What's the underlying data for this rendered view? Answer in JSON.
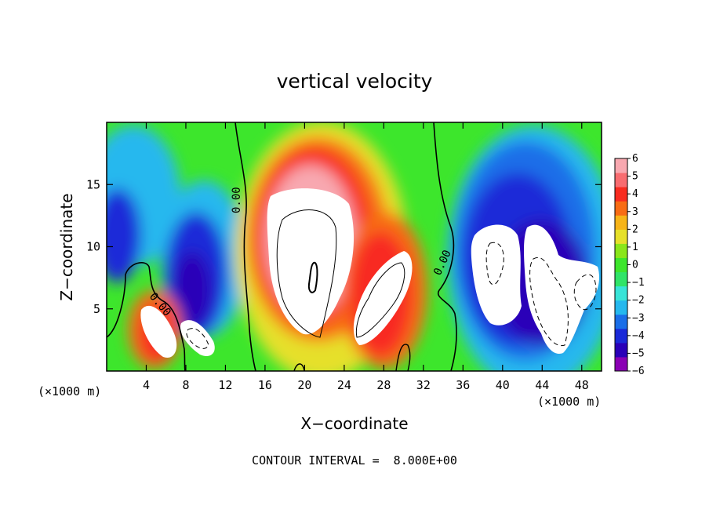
{
  "chart_data": {
    "type": "heatmap",
    "title": "vertical velocity",
    "xlabel": "X−coordinate",
    "ylabel": "Z−coordinate",
    "x_unit_label": "(×1000 m)",
    "x_ticks": [
      4,
      8,
      12,
      16,
      20,
      24,
      28,
      32,
      36,
      40,
      44,
      48
    ],
    "y_ticks": [
      5,
      10,
      15
    ],
    "xlim": [
      0,
      50
    ],
    "ylim": [
      0,
      20
    ],
    "colorbar": {
      "min": -6,
      "max": 6,
      "ticks": [
        6,
        5,
        4,
        3,
        2,
        1,
        0,
        -1,
        -2,
        -3,
        -4,
        -5,
        -6
      ],
      "tick_labels": [
        "6",
        "5",
        "4",
        "3",
        "2",
        "1",
        "0",
        "−1",
        "−2",
        "−3",
        "−4",
        "−5",
        "−6"
      ],
      "colors": [
        "#8a00b4",
        "#2a00b8",
        "#1a2ad8",
        "#1a6ee8",
        "#25b8ee",
        "#38e4d8",
        "#30e468",
        "#3de62c",
        "#8ae61a",
        "#e6e02a",
        "#f7b418",
        "#f86c14",
        "#f82c20",
        "#f86c70",
        "#f8a8b0"
      ]
    },
    "contour_labels": [
      "0.00",
      "0.00",
      "0.00"
    ],
    "contour_interval_label": "CONTOUR INTERVAL =  8.000E+00",
    "features": [
      {
        "sign": "positive",
        "x_center": 20.5,
        "z_center": 9.5,
        "note": "strong updraft core"
      },
      {
        "sign": "positive",
        "x_center": 28.5,
        "z_center": 6.5,
        "note": "updraft core"
      },
      {
        "sign": "positive",
        "x_center": 5,
        "z_center": 3.5,
        "note": "updraft core"
      },
      {
        "sign": "negative",
        "x_center": 40,
        "z_center": 8,
        "note": "downdraft core"
      },
      {
        "sign": "negative",
        "x_center": 46,
        "z_center": 6,
        "note": "downdraft core"
      },
      {
        "sign": "negative",
        "x_center": 9.5,
        "z_center": 3,
        "note": "downdraft core"
      }
    ]
  }
}
